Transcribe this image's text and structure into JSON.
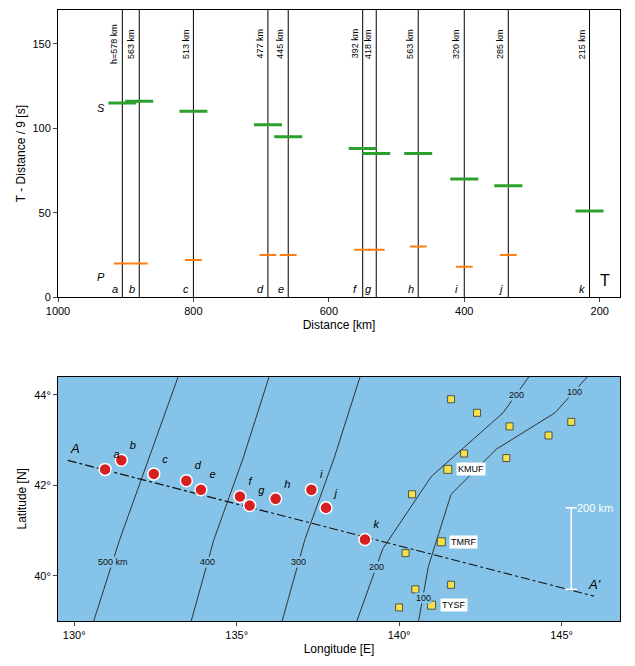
{
  "chart_data": [
    {
      "type": "section",
      "xlabel": "Distance [km]",
      "ylabel": "T - Distance / 9 [s]",
      "xlim": [
        1000,
        170
      ],
      "xticks": [
        1000,
        800,
        600,
        400,
        200
      ],
      "ylim": [
        0,
        170
      ],
      "yticks": [
        0,
        50,
        100,
        150
      ],
      "grid": false,
      "color": "#000000",
      "traces": [
        {
          "label": "a",
          "depth": "h=578 km",
          "distance": 905,
          "p_time": 20,
          "s_time": 115
        },
        {
          "label": "b",
          "depth": "563 km",
          "distance": 880,
          "p_time": 20,
          "s_time": 116
        },
        {
          "label": "c",
          "depth": "513 km",
          "distance": 800,
          "p_time": 22,
          "s_time": 110
        },
        {
          "label": "d",
          "depth": "477 km",
          "distance": 690,
          "p_time": 25,
          "s_time": 102
        },
        {
          "label": "e",
          "depth": "445 km",
          "distance": 660,
          "p_time": 25,
          "s_time": 95
        },
        {
          "label": "f",
          "depth": "392 km",
          "distance": 550,
          "p_time": 28,
          "s_time": 88
        },
        {
          "label": "g",
          "depth": "418 km",
          "distance": 530,
          "p_time": 28,
          "s_time": 85
        },
        {
          "label": "h",
          "depth": "563 km",
          "distance": 468,
          "p_time": 30,
          "s_time": 85
        },
        {
          "label": "i",
          "depth": "320 km",
          "distance": 400,
          "p_time": 18,
          "s_time": 70
        },
        {
          "label": "j",
          "depth": "285 km",
          "distance": 335,
          "p_time": 25,
          "s_time": 66
        },
        {
          "label": "k",
          "depth": "215 km",
          "distance": 215,
          "p_time": null,
          "s_time": 51
        }
      ],
      "phase_labels": [
        {
          "text": "P",
          "distance": 937,
          "time": 12
        },
        {
          "text": "S",
          "distance": 937,
          "time": 112
        }
      ],
      "panel_label": "T"
    },
    {
      "type": "map",
      "xlabel": "Longitude [E]",
      "ylabel": "Latitude [N]",
      "xlim": [
        129.5,
        146.8
      ],
      "xticks": [
        {
          "value": 130,
          "label": "130°"
        },
        {
          "value": 135,
          "label": "135°"
        },
        {
          "value": 140,
          "label": "140°"
        },
        {
          "value": 145,
          "label": "145°"
        }
      ],
      "ylim": [
        39,
        44.4
      ],
      "yticks": [
        {
          "value": 40,
          "label": "40°"
        },
        {
          "value": 42,
          "label": "42°"
        },
        {
          "value": 44,
          "label": "44°"
        }
      ],
      "sea_color": "#86c3e8",
      "events": {
        "labels": [
          "a",
          "b",
          "c",
          "d",
          "e",
          "f",
          "g",
          "h",
          "i",
          "j",
          "k"
        ],
        "lon": [
          130.95,
          131.45,
          132.45,
          133.45,
          133.9,
          135.1,
          135.4,
          136.2,
          137.3,
          137.75,
          138.95
        ],
        "lat": [
          42.35,
          42.55,
          42.25,
          42.1,
          41.9,
          41.75,
          41.55,
          41.7,
          41.9,
          41.5,
          40.8
        ],
        "color": "#d62020"
      },
      "contours": [
        {
          "depth": 500,
          "lon": [
            130.6,
            131.4,
            132.3,
            133.2
          ],
          "lat": [
            39,
            40.8,
            42.6,
            44.4
          ],
          "labels": [
            {
              "text": "500 km",
              "lon": 131.2,
              "lat": 40.3
            }
          ]
        },
        {
          "depth": 400,
          "lon": [
            133.6,
            134.3,
            135.2,
            136.0
          ],
          "lat": [
            39,
            40.8,
            42.6,
            44.4
          ],
          "labels": [
            {
              "text": "400",
              "lon": 134.1,
              "lat": 40.3
            }
          ]
        },
        {
          "depth": 300,
          "lon": [
            136.4,
            137.1,
            138.0,
            138.8
          ],
          "lat": [
            39,
            40.8,
            42.6,
            44.4
          ],
          "labels": [
            {
              "text": "300",
              "lon": 136.9,
              "lat": 40.3
            }
          ]
        },
        {
          "depth": 200,
          "lon": [
            138.7,
            139.5,
            141.0,
            143.2,
            144.0
          ],
          "lat": [
            39,
            40.6,
            42.2,
            43.6,
            44.4
          ],
          "labels": [
            {
              "text": "200",
              "lon": 139.3,
              "lat": 40.2
            },
            {
              "text": "200",
              "lon": 143.6,
              "lat": 44.0
            }
          ]
        },
        {
          "depth": 100,
          "lon": [
            140.6,
            140.9,
            141.6,
            143.0,
            144.8,
            145.8
          ],
          "lat": [
            39,
            40.2,
            41.8,
            42.8,
            43.6,
            44.4
          ],
          "labels": [
            {
              "text": "100",
              "lon": 140.75,
              "lat": 39.5
            },
            {
              "text": "100",
              "lon": 145.4,
              "lat": 44.05
            }
          ]
        }
      ],
      "profile": {
        "lon": [
          129.8,
          146.0
        ],
        "lat": [
          42.55,
          39.55
        ],
        "line_style": "dashdot",
        "start_label": "A",
        "end_label": "A'"
      },
      "stations": [
        {
          "name": "KMUF",
          "lon": 141.5,
          "lat": 42.35
        },
        {
          "name": "TMRF",
          "lon": 141.3,
          "lat": 40.75
        },
        {
          "name": "TYSF",
          "lon": 141.0,
          "lat": 39.35
        }
      ],
      "other_stations": {
        "lon": [
          141.6,
          142.4,
          143.4,
          144.6,
          145.3,
          142.0,
          143.3,
          140.4,
          140.2,
          140.5,
          141.6,
          140.0
        ],
        "lat": [
          43.9,
          43.6,
          43.3,
          43.1,
          43.4,
          42.7,
          42.6,
          41.8,
          40.5,
          39.7,
          39.8,
          39.3
        ]
      },
      "scale_bar": {
        "label": "200 km",
        "lon": 145.3,
        "lat": [
          39.7,
          41.5
        ]
      }
    }
  ]
}
